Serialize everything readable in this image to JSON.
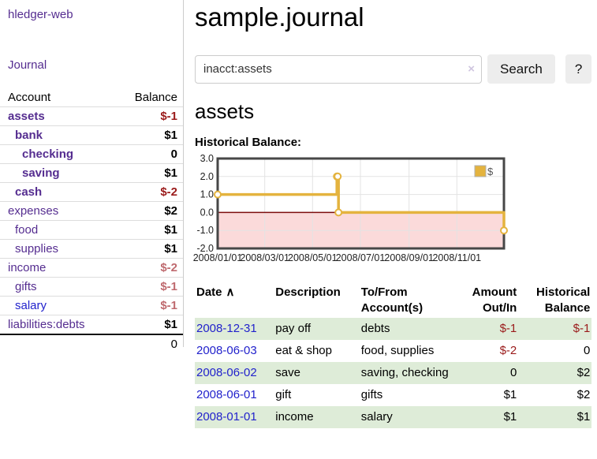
{
  "sidebar": {
    "brand": "hledger-web",
    "journal_link": "Journal",
    "header": {
      "account": "Account",
      "balance": "Balance"
    },
    "accounts": [
      {
        "name": "assets",
        "balance": "$-1",
        "indent": 0,
        "bold": true,
        "neg": "strong"
      },
      {
        "name": "bank",
        "balance": "$1",
        "indent": 1,
        "bold": true,
        "neg": ""
      },
      {
        "name": "checking",
        "balance": "0",
        "indent": 2,
        "bold": true,
        "neg": ""
      },
      {
        "name": "saving",
        "balance": "$1",
        "indent": 2,
        "bold": true,
        "neg": ""
      },
      {
        "name": "cash",
        "balance": "$-2",
        "indent": 1,
        "bold": true,
        "neg": "strong"
      },
      {
        "name": "expenses",
        "balance": "$2",
        "indent": 0,
        "bold": false,
        "neg": ""
      },
      {
        "name": "food",
        "balance": "$1",
        "indent": 1,
        "bold": false,
        "neg": ""
      },
      {
        "name": "supplies",
        "balance": "$1",
        "indent": 1,
        "bold": false,
        "neg": ""
      },
      {
        "name": "income",
        "balance": "$-2",
        "indent": 0,
        "bold": false,
        "neg": "soft"
      },
      {
        "name": "gifts",
        "balance": "$-1",
        "indent": 1,
        "bold": false,
        "neg": "soft"
      },
      {
        "name": "salary",
        "balance": "$-1",
        "indent": 1,
        "bold": false,
        "neg": "soft",
        "blue": true
      },
      {
        "name": "liabilities:debts",
        "balance": "$1",
        "indent": 0,
        "bold": false,
        "neg": ""
      }
    ],
    "total": "0"
  },
  "main": {
    "title": "sample.journal",
    "search": {
      "value": "inacct:assets",
      "clear_icon": "×",
      "button_label": "Search",
      "help_label": "?"
    },
    "account_heading": "assets",
    "chart_label": "Historical Balance:"
  },
  "chart_data": {
    "type": "line",
    "step": true,
    "title": "Historical Balance",
    "series": [
      {
        "name": "$",
        "color": "#e4b33e",
        "points": [
          [
            "2008-01-01",
            1
          ],
          [
            "2008-06-01",
            2
          ],
          [
            "2008-06-02",
            2
          ],
          [
            "2008-06-03",
            0
          ],
          [
            "2008-12-31",
            -1
          ]
        ]
      }
    ],
    "x_range": [
      "2008-01-01",
      "2008-12-31"
    ],
    "ylim": [
      -2,
      3
    ],
    "yticks": [
      3.0,
      2.0,
      1.0,
      0.0,
      -1.0,
      -2.0
    ],
    "xticks": [
      "2008/01/01",
      "2008/03/01",
      "2008/05/01",
      "2008/07/01",
      "2008/09/01",
      "2008/11/01"
    ],
    "legend": {
      "label": "$",
      "position": "top-right"
    },
    "grid": true,
    "negative_region_fill": "#fbdada",
    "zero_line_color": "#7d0d0d",
    "border_color": "#474747"
  },
  "register": {
    "headers": {
      "date": "Date",
      "sort_icon": "∧",
      "description": "Description",
      "accounts": "To/From Account(s)",
      "amount": "Amount Out/In",
      "balance": "Historical Balance"
    },
    "rows": [
      {
        "date": "2008-12-31",
        "description": "pay off",
        "accounts": "debts",
        "amount": "$-1",
        "balance": "$-1",
        "amount_neg": true,
        "balance_neg": true,
        "shade": true
      },
      {
        "date": "2008-06-03",
        "description": "eat & shop",
        "accounts": "food, supplies",
        "amount": "$-2",
        "balance": "0",
        "amount_neg": true,
        "balance_neg": false,
        "shade": false
      },
      {
        "date": "2008-06-02",
        "description": "save",
        "accounts": "saving, checking",
        "amount": "0",
        "balance": "$2",
        "amount_neg": false,
        "balance_neg": false,
        "shade": true
      },
      {
        "date": "2008-06-01",
        "description": "gift",
        "accounts": "gifts",
        "amount": "$1",
        "balance": "$2",
        "amount_neg": false,
        "balance_neg": false,
        "shade": false
      },
      {
        "date": "2008-01-01",
        "description": "income",
        "accounts": "salary",
        "amount": "$1",
        "balance": "$1",
        "amount_neg": false,
        "balance_neg": false,
        "shade": true
      }
    ]
  },
  "colors": {
    "link_purple": "#552d90",
    "link_blue": "#2222cc",
    "negative_strong": "#9a1a1a",
    "negative_soft": "#bf6a6f",
    "row_shade_green": "#deecd8",
    "chart_gold": "#e4b33e",
    "chart_negative_pink": "#fbdada"
  }
}
